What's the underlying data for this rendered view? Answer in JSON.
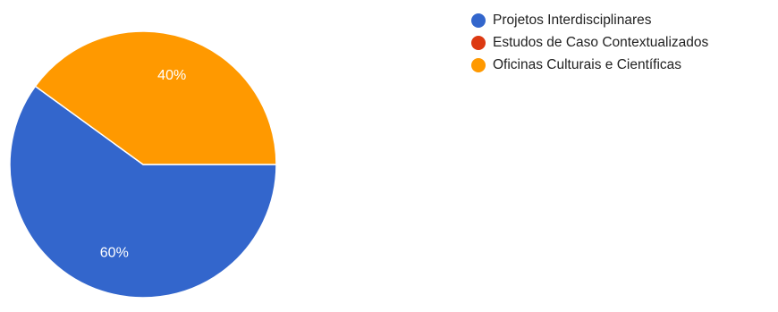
{
  "chart_data": {
    "type": "pie",
    "categories": [
      "Projetos Interdisciplinares",
      "Estudos de Caso Contextualizados",
      "Oficinas Culturais e Científicas"
    ],
    "values": [
      60,
      0,
      40
    ],
    "data_labels": [
      "60%",
      "",
      "40%"
    ],
    "colors": [
      "#3366cc",
      "#dc3912",
      "#ff9900"
    ],
    "legend": "right",
    "title": ""
  }
}
